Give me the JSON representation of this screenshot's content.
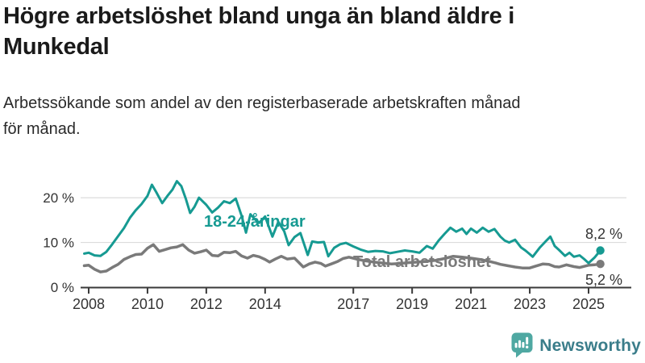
{
  "header": {
    "title_lines": [
      "Högre arbetslöshet bland unga än bland äldre i",
      "Munkedal"
    ],
    "subtitle_lines": [
      "Arbetssökande som andel av den registerbaserade arbetskraften månad",
      "för månad."
    ]
  },
  "colors": {
    "accent_teal": "#169a92",
    "line_gray": "#7a7a7a",
    "axis_text": "#333333",
    "axis_line": "#3a3a3a",
    "grid": "#dcdcdc",
    "brand_icon_teal": "#4fa8a2",
    "brand_text": "#3a7d8a"
  },
  "chart_data": {
    "type": "line",
    "title": "Högre arbetslöshet bland unga än bland äldre i Munkedal",
    "subtitle": "Arbetssökande som andel av den registerbaserade arbetskraften månad för månad.",
    "grid": true,
    "legend_position": "inline-labels",
    "x_axis": {
      "range": [
        2007.85,
        2025.6
      ],
      "ticks": [
        {
          "value": 2008,
          "label": "2008"
        },
        {
          "value": 2010,
          "label": "2010"
        },
        {
          "value": 2012,
          "label": "2012"
        },
        {
          "value": 2014,
          "label": "2014"
        },
        {
          "value": 2017,
          "label": "2017"
        },
        {
          "value": 2019,
          "label": "2019"
        },
        {
          "value": 2021,
          "label": "2021"
        },
        {
          "value": 2023,
          "label": "2023"
        },
        {
          "value": 2025,
          "label": "2025"
        }
      ]
    },
    "y_axis": {
      "range": [
        0,
        25
      ],
      "unit": "%",
      "ticks": [
        {
          "value": 0,
          "label": "0 %"
        },
        {
          "value": 10,
          "label": "10 %"
        },
        {
          "value": 20,
          "label": "20 %"
        }
      ]
    },
    "series": [
      {
        "name": "18-24-åringar",
        "color": "#169a92",
        "end_label": "8,2 %",
        "end_value": 8.2,
        "points": [
          [
            2007.85,
            7.5
          ],
          [
            2008.0,
            7.7
          ],
          [
            2008.2,
            7.1
          ],
          [
            2008.4,
            7.0
          ],
          [
            2008.6,
            7.9
          ],
          [
            2008.8,
            9.6
          ],
          [
            2009.0,
            11.4
          ],
          [
            2009.2,
            13.2
          ],
          [
            2009.4,
            15.5
          ],
          [
            2009.6,
            17.2
          ],
          [
            2009.8,
            18.6
          ],
          [
            2010.0,
            20.4
          ],
          [
            2010.15,
            22.9
          ],
          [
            2010.3,
            21.2
          ],
          [
            2010.5,
            18.8
          ],
          [
            2010.7,
            20.6
          ],
          [
            2010.85,
            21.8
          ],
          [
            2011.0,
            23.7
          ],
          [
            2011.15,
            22.6
          ],
          [
            2011.3,
            19.8
          ],
          [
            2011.45,
            16.6
          ],
          [
            2011.6,
            18.0
          ],
          [
            2011.75,
            20.0
          ],
          [
            2012.0,
            18.4
          ],
          [
            2012.2,
            16.7
          ],
          [
            2012.4,
            17.8
          ],
          [
            2012.6,
            19.2
          ],
          [
            2012.8,
            18.8
          ],
          [
            2013.0,
            19.8
          ],
          [
            2013.2,
            16.0
          ],
          [
            2013.35,
            12.2
          ],
          [
            2013.5,
            16.3
          ],
          [
            2013.65,
            15.2
          ],
          [
            2013.8,
            14.4
          ],
          [
            2014.0,
            15.8
          ],
          [
            2014.25,
            11.3
          ],
          [
            2014.45,
            14.6
          ],
          [
            2014.65,
            12.5
          ],
          [
            2014.8,
            9.4
          ],
          [
            2015.0,
            11.2
          ],
          [
            2015.2,
            12.1
          ],
          [
            2015.45,
            7.2
          ],
          [
            2015.6,
            10.2
          ],
          [
            2015.8,
            10.0
          ],
          [
            2016.0,
            10.1
          ],
          [
            2016.15,
            6.9
          ],
          [
            2016.35,
            8.8
          ],
          [
            2016.55,
            9.6
          ],
          [
            2016.75,
            9.9
          ],
          [
            2017.0,
            9.1
          ],
          [
            2017.25,
            8.4
          ],
          [
            2017.5,
            7.9
          ],
          [
            2017.75,
            8.1
          ],
          [
            2018.0,
            8.0
          ],
          [
            2018.25,
            7.6
          ],
          [
            2018.5,
            7.9
          ],
          [
            2018.75,
            8.2
          ],
          [
            2019.0,
            8.0
          ],
          [
            2019.25,
            7.7
          ],
          [
            2019.5,
            9.2
          ],
          [
            2019.7,
            8.6
          ],
          [
            2019.9,
            10.4
          ],
          [
            2020.1,
            11.9
          ],
          [
            2020.3,
            13.3
          ],
          [
            2020.5,
            12.4
          ],
          [
            2020.7,
            13.1
          ],
          [
            2020.85,
            11.9
          ],
          [
            2021.0,
            13.1
          ],
          [
            2021.2,
            12.2
          ],
          [
            2021.4,
            13.3
          ],
          [
            2021.6,
            12.4
          ],
          [
            2021.8,
            13.0
          ],
          [
            2022.0,
            11.3
          ],
          [
            2022.15,
            10.4
          ],
          [
            2022.3,
            10.0
          ],
          [
            2022.5,
            10.6
          ],
          [
            2022.7,
            8.9
          ],
          [
            2022.85,
            8.2
          ],
          [
            2023.0,
            7.4
          ],
          [
            2023.1,
            6.8
          ],
          [
            2023.35,
            8.9
          ],
          [
            2023.55,
            10.3
          ],
          [
            2023.7,
            11.3
          ],
          [
            2023.85,
            9.2
          ],
          [
            2024.0,
            8.3
          ],
          [
            2024.2,
            7.0
          ],
          [
            2024.35,
            7.7
          ],
          [
            2024.5,
            6.8
          ],
          [
            2024.7,
            7.1
          ],
          [
            2024.85,
            6.3
          ],
          [
            2025.0,
            5.4
          ],
          [
            2025.2,
            6.6
          ],
          [
            2025.4,
            8.2
          ]
        ]
      },
      {
        "name": "Total arbetslöshet",
        "color": "#7a7a7a",
        "end_label": "5,2 %",
        "end_value": 5.2,
        "points": [
          [
            2007.85,
            4.8
          ],
          [
            2008.0,
            4.9
          ],
          [
            2008.2,
            4.0
          ],
          [
            2008.4,
            3.4
          ],
          [
            2008.6,
            3.6
          ],
          [
            2008.8,
            4.4
          ],
          [
            2009.0,
            5.1
          ],
          [
            2009.2,
            6.2
          ],
          [
            2009.4,
            6.8
          ],
          [
            2009.6,
            7.3
          ],
          [
            2009.8,
            7.4
          ],
          [
            2010.0,
            8.7
          ],
          [
            2010.2,
            9.5
          ],
          [
            2010.4,
            8.0
          ],
          [
            2010.6,
            8.4
          ],
          [
            2010.8,
            8.8
          ],
          [
            2011.0,
            9.0
          ],
          [
            2011.2,
            9.5
          ],
          [
            2011.4,
            8.3
          ],
          [
            2011.6,
            7.6
          ],
          [
            2011.8,
            7.9
          ],
          [
            2012.0,
            8.3
          ],
          [
            2012.2,
            7.1
          ],
          [
            2012.4,
            7.0
          ],
          [
            2012.6,
            7.8
          ],
          [
            2012.8,
            7.7
          ],
          [
            2013.0,
            8.0
          ],
          [
            2013.2,
            7.0
          ],
          [
            2013.4,
            6.5
          ],
          [
            2013.6,
            7.1
          ],
          [
            2013.8,
            6.8
          ],
          [
            2014.0,
            6.2
          ],
          [
            2014.15,
            5.6
          ],
          [
            2014.35,
            6.3
          ],
          [
            2014.55,
            6.9
          ],
          [
            2014.75,
            6.3
          ],
          [
            2015.0,
            6.5
          ],
          [
            2015.3,
            4.5
          ],
          [
            2015.5,
            5.2
          ],
          [
            2015.7,
            5.6
          ],
          [
            2015.9,
            5.3
          ],
          [
            2016.05,
            4.7
          ],
          [
            2016.25,
            5.2
          ],
          [
            2016.45,
            5.7
          ],
          [
            2016.65,
            6.4
          ],
          [
            2016.85,
            6.7
          ],
          [
            2017.1,
            6.3
          ],
          [
            2017.4,
            5.9
          ],
          [
            2017.7,
            5.6
          ],
          [
            2018.0,
            5.4
          ],
          [
            2018.3,
            5.2
          ],
          [
            2018.6,
            5.3
          ],
          [
            2018.9,
            5.5
          ],
          [
            2019.2,
            5.6
          ],
          [
            2019.5,
            5.8
          ],
          [
            2019.8,
            6.0
          ],
          [
            2020.1,
            6.4
          ],
          [
            2020.4,
            6.9
          ],
          [
            2020.7,
            6.7
          ],
          [
            2021.0,
            6.5
          ],
          [
            2021.3,
            6.2
          ],
          [
            2021.6,
            5.8
          ],
          [
            2021.85,
            5.4
          ],
          [
            2022.0,
            5.1
          ],
          [
            2022.25,
            4.8
          ],
          [
            2022.5,
            4.5
          ],
          [
            2022.75,
            4.3
          ],
          [
            2023.0,
            4.3
          ],
          [
            2023.2,
            4.7
          ],
          [
            2023.45,
            5.2
          ],
          [
            2023.65,
            5.1
          ],
          [
            2023.85,
            4.6
          ],
          [
            2024.0,
            4.5
          ],
          [
            2024.25,
            5.0
          ],
          [
            2024.5,
            4.6
          ],
          [
            2024.7,
            4.4
          ],
          [
            2025.0,
            4.9
          ],
          [
            2025.2,
            5.0
          ],
          [
            2025.4,
            5.2
          ]
        ]
      }
    ]
  },
  "footer": {
    "brand": "Newsworthy"
  }
}
